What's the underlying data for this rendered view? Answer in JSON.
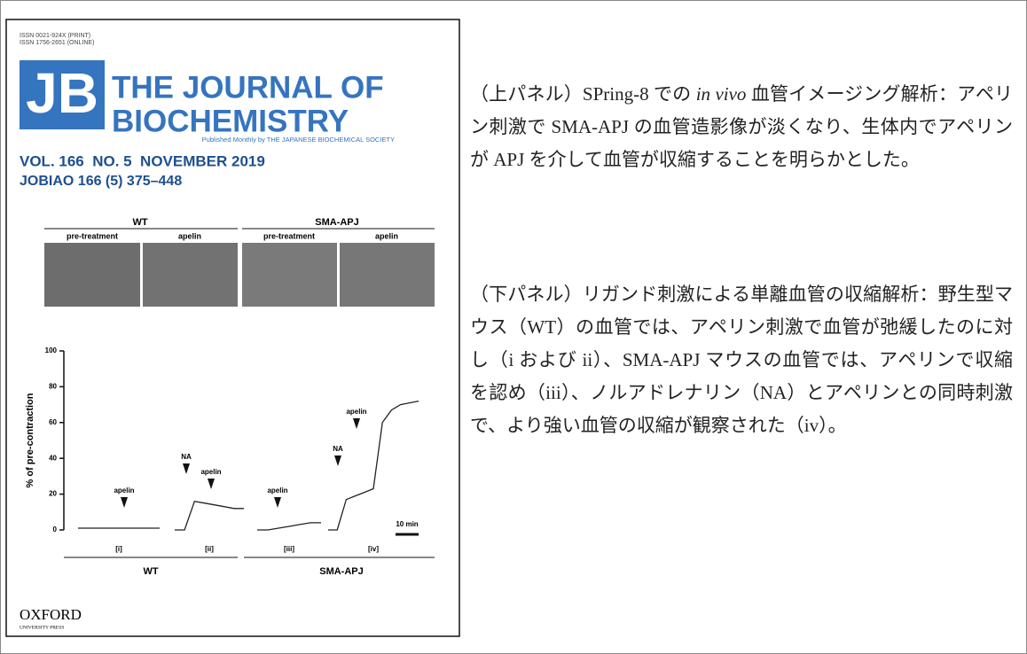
{
  "cover": {
    "issn": [
      "ISSN 0021-924X (PRINT)",
      "ISSN 1756-2651 (ONLINE)"
    ],
    "logo": "JB",
    "title": [
      "THE JOURNAL OF",
      "BIOCHEMISTRY"
    ],
    "publisher_line": "Published Monthly by THE JAPANESE BIOCHEMICAL SOCIETY",
    "volume": "VOL. 166  NO. 5  NOVEMBER 2019",
    "code": "JOBIAO 166 (5) 375–448",
    "figure": {
      "groups": [
        "WT",
        "SMA-APJ"
      ],
      "panels": [
        "pre-treatment",
        "apelin",
        "pre-treatment",
        "apelin"
      ],
      "chart": {
        "type": "line",
        "ylabel": "% of pre-contraction",
        "ylim": [
          0,
          100
        ],
        "yticks": [
          0,
          20,
          40,
          60,
          80,
          100
        ],
        "traces": [
          {
            "name": "[i]",
            "values": [
              1,
              1,
              1,
              1,
              1,
              1,
              1
            ]
          },
          {
            "name": "[ii]",
            "values": [
              0,
              0,
              16,
              15,
              14,
              13,
              12,
              12
            ]
          },
          {
            "name": "[iii]",
            "values": [
              0,
              0,
              1,
              2,
              3,
              4,
              4
            ]
          },
          {
            "name": "[iv]",
            "values": [
              0,
              0,
              17,
              19,
              21,
              23,
              60,
              67,
              70,
              71,
              72
            ]
          }
        ],
        "annotations": [
          "apelin",
          "NA",
          "apelin",
          "apelin",
          "NA",
          "apelin"
        ],
        "scale_bar": "10 min",
        "groups": [
          "WT",
          "SMA-APJ"
        ]
      }
    },
    "oxford": [
      "OXFORD",
      "UNIVERSITY PRESS"
    ]
  },
  "text": {
    "paragraphs": [
      [
        "（上パネル）SPring-8 での ",
        "in vivo",
        " 血管イメージング解析：アペリン刺激で SMA-APJ の血管造影像が淡くなり、生体内でアペリンが APJ を介して血管が収縮することを明らかとした。"
      ],
      [
        "（下パネル）リガンド刺激による単離血管の収縮解析：野生型マウス（WT）の血管では、アペリン刺激で血管が弛緩したのに対し（i および ii）、SMA-APJ マウスの血管では、アペリンで収縮を認め（iii）、ノルアドレナリン（NA）とアペリンとの同時刺激で、より強い血管の収縮が観察された（iv）。"
      ]
    ]
  }
}
